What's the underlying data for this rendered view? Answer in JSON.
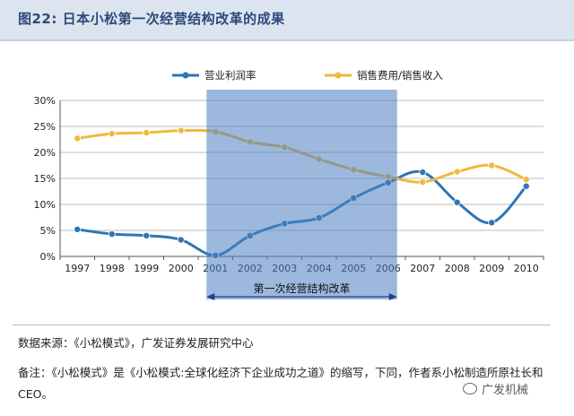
{
  "figure": {
    "title": "图22: 日本小松第一次经营结构改革的成果"
  },
  "chart_data": {
    "type": "line",
    "categories": [
      "1997",
      "1998",
      "1999",
      "2000",
      "2001",
      "2002",
      "2003",
      "2004",
      "2005",
      "2006",
      "2007",
      "2008",
      "2009",
      "2010"
    ],
    "yticks": [
      "0%",
      "5%",
      "10%",
      "15%",
      "20%",
      "25%",
      "30%"
    ],
    "ylim": [
      0,
      30
    ],
    "grid": true,
    "legend_placement": "top",
    "series": [
      {
        "name": "营业利润率",
        "color": "#2e75b6",
        "values": [
          5.2,
          4.3,
          4.0,
          3.2,
          0.2,
          4.0,
          6.3,
          7.4,
          11.2,
          14.2,
          16.2,
          10.4,
          6.5,
          13.5
        ]
      },
      {
        "name": "销售费用/销售收入",
        "color": "#f0b93d",
        "values": [
          22.7,
          23.6,
          23.8,
          24.2,
          24.0,
          22.0,
          21.0,
          18.7,
          16.7,
          15.3,
          14.3,
          16.3,
          17.5,
          14.8
        ]
      }
    ],
    "highlight": {
      "from": "2001",
      "to": "2006",
      "label": "第一次经营结构改革",
      "color": "#4a7fc1"
    }
  },
  "footer": {
    "source": "数据来源：《小松模式》，广发证券发展研究中心",
    "note": "备注：《小松模式》是《小松模式:全球化经济下企业成功之道》的缩写，下同，作者系小松制造所原社长和CEO。",
    "watermark": "广发机械"
  }
}
